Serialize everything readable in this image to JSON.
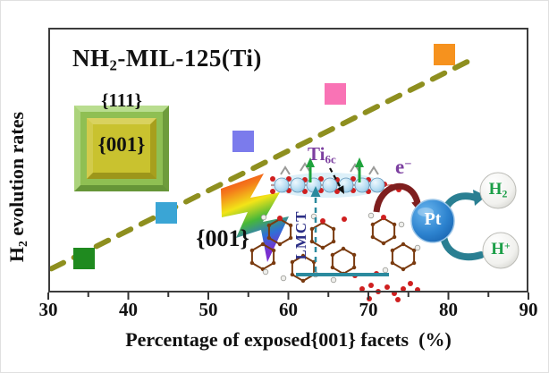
{
  "figure": {
    "title": {
      "pre": "NH",
      "sub": "2",
      "post": "-MIL-125(Ti)"
    },
    "x_axis": {
      "label": "Percentage of exposed{001} facets  (%)"
    },
    "y_axis": {
      "label_pre": "H",
      "label_sub": "2",
      "label_post": " evolution rates"
    }
  },
  "annotations": {
    "facet_top": "{111}",
    "facet_face": "{001}",
    "facet_callout": "{001}",
    "ti6c": {
      "base": "Ti",
      "sub": "6c"
    },
    "electron": {
      "base": "e",
      "sup": "−"
    },
    "lmct": "LMCT",
    "pt": "Pt",
    "h2": {
      "base": "H",
      "sub": "2"
    },
    "hplus": {
      "base": "H",
      "sup": "+"
    }
  },
  "chart_data": {
    "type": "scatter",
    "title": "NH₂-MIL-125(Ti)",
    "xlabel": "Percentage of exposed{001} facets (%)",
    "ylabel": "H₂ evolution rates",
    "xlim": [
      30,
      90
    ],
    "x_ticks": [
      30,
      40,
      50,
      60,
      70,
      80,
      90
    ],
    "x_minor_tick_step": 5,
    "y_axis_note": "no numeric y scale shown; y_rel is relative height (0-1) of plot area",
    "points": [
      {
        "x": 34.5,
        "y_rel": 0.13,
        "color": "#1f8a1f"
      },
      {
        "x": 44.7,
        "y_rel": 0.3,
        "color": "#3aa5d5"
      },
      {
        "x": 54.4,
        "y_rel": 0.57,
        "color": "#7b7bec"
      },
      {
        "x": 65.9,
        "y_rel": 0.75,
        "color": "#f973b5"
      },
      {
        "x": 79.5,
        "y_rel": 0.9,
        "color": "#f6921e"
      }
    ],
    "trend": {
      "style": "dashed",
      "color": "#8e8f1f",
      "x1": 30.4,
      "y1_rel": 0.09,
      "x2": 83.6,
      "y2_rel": 0.89
    },
    "grid": false,
    "legend": false
  },
  "colors": {
    "trend_line": "#8e8f1f",
    "pt_sphere": "#2d83cf",
    "teal_arrows": "#2a7f92",
    "electron_arrow": "#7e1e1e",
    "purple_labels": "#7c3fa0",
    "lmct_label": "#2c2f86",
    "h_text_green": "#1b9e47"
  }
}
